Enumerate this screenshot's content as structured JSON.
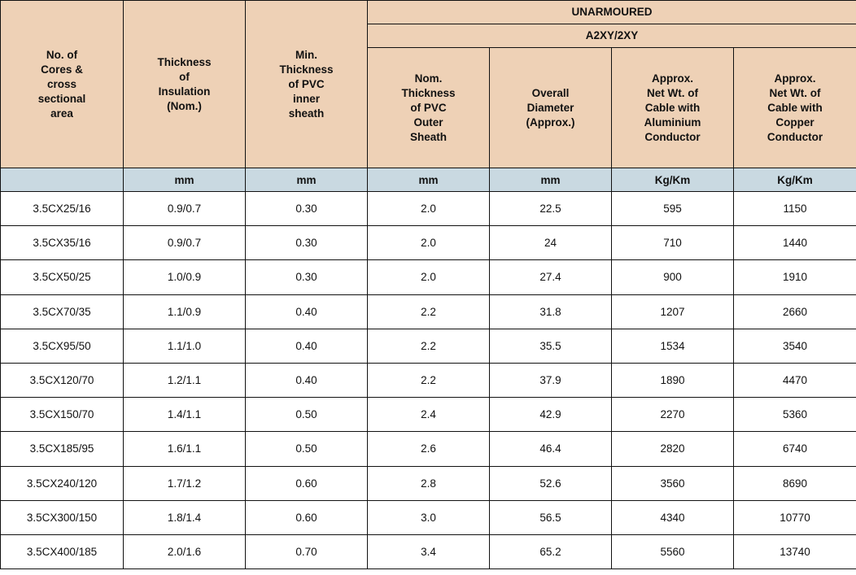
{
  "header": {
    "group": "UNARMOURED",
    "subgroup": "A2XY/2XY",
    "columns": [
      "No. of\nCores &\ncross\nsectional\narea",
      "Thickness\nof\nInsulation\n(Nom.)",
      "Min.\nThickness\nof PVC\ninner\nsheath",
      "Nom.\nThickness\nof  PVC\nOuter\nSheath",
      "Overall\nDiameter\n(Approx.)",
      "Approx.\nNet Wt. of\nCable with\nAluminium\nConductor",
      "Approx.\nNet Wt. of\nCable with\nCopper\nConductor"
    ],
    "units": [
      "",
      "mm",
      "mm",
      "mm",
      "mm",
      "Kg/Km",
      "Kg/Km"
    ]
  },
  "rows": [
    [
      "3.5CX25/16",
      "0.9/0.7",
      "0.30",
      "2.0",
      "22.5",
      "595",
      "1150"
    ],
    [
      "3.5CX35/16",
      "0.9/0.7",
      "0.30",
      "2.0",
      "24",
      "710",
      "1440"
    ],
    [
      "3.5CX50/25",
      "1.0/0.9",
      "0.30",
      "2.0",
      "27.4",
      "900",
      "1910"
    ],
    [
      "3.5CX70/35",
      "1.1/0.9",
      "0.40",
      "2.2",
      "31.8",
      "1207",
      "2660"
    ],
    [
      "3.5CX95/50",
      "1.1/1.0",
      "0.40",
      "2.2",
      "35.5",
      "1534",
      "3540"
    ],
    [
      "3.5CX120/70",
      "1.2/1.1",
      "0.40",
      "2.2",
      "37.9",
      "1890",
      "4470"
    ],
    [
      "3.5CX150/70",
      "1.4/1.1",
      "0.50",
      "2.4",
      "42.9",
      "2270",
      "5360"
    ],
    [
      "3.5CX185/95",
      "1.6/1.1",
      "0.50",
      "2.6",
      "46.4",
      "2820",
      "6740"
    ],
    [
      "3.5CX240/120",
      "1.7/1.2",
      "0.60",
      "2.8",
      "52.6",
      "3560",
      "8690"
    ],
    [
      "3.5CX300/150",
      "1.8/1.4",
      "0.60",
      "3.0",
      "56.5",
      "4340",
      "10770"
    ],
    [
      "3.5CX400/185",
      "2.0/1.6",
      "0.70",
      "3.4",
      "65.2",
      "5560",
      "13740"
    ]
  ],
  "colors": {
    "header_bg": "#eed1b6",
    "units_bg": "#c9d9e1",
    "border": "#111111"
  }
}
